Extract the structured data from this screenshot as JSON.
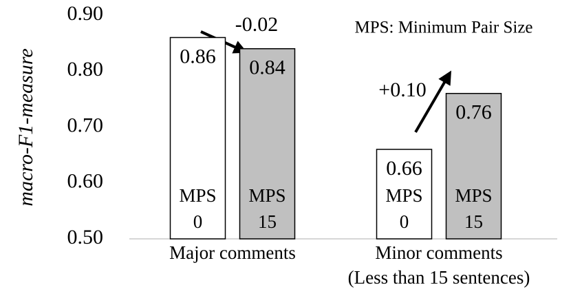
{
  "chart_data": {
    "type": "bar",
    "y_label": "macro-F1-measure",
    "categories": [
      "Major comments",
      "Minor comments\n(Less than 15 sentences)"
    ],
    "series": [
      {
        "name": "MPS 0",
        "color": "#ffffff",
        "values": [
          0.86,
          0.66
        ]
      },
      {
        "name": "MPS 15",
        "color": "#c0c0c0",
        "values": [
          0.84,
          0.76
        ]
      }
    ],
    "ylim": [
      0.5,
      0.9
    ],
    "yticks": [
      {
        "value": 0.5,
        "label": "0.50"
      },
      {
        "value": 0.6,
        "label": "0.60"
      },
      {
        "value": 0.7,
        "label": "0.70"
      },
      {
        "value": 0.8,
        "label": "0.80"
      },
      {
        "value": 0.9,
        "label": "0.90"
      }
    ],
    "annotations": [
      "-0.02",
      "+0.10",
      "MPS: Minimum Pair Size"
    ]
  }
}
